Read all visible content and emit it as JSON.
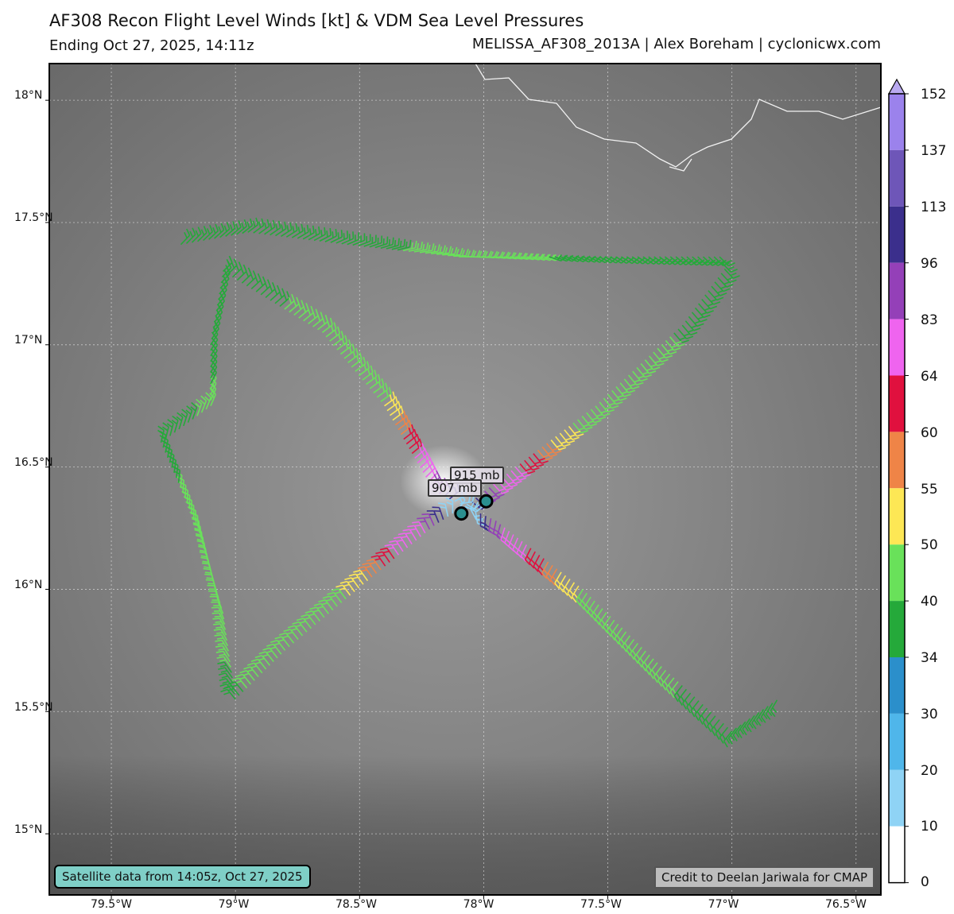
{
  "header": {
    "title": "AF308 Recon Flight Level Winds [kt] & VDM Sea Level Pressures",
    "subtitle_left": "Ending Oct 27, 2025, 14:11z",
    "subtitle_right": "MELISSA_AF308_2013A | Alex Boreham | cyclonicwx.com"
  },
  "map": {
    "lat_ticks": [
      "18°N",
      "17.5°N",
      "17°N",
      "16.5°N",
      "16°N",
      "15.5°N",
      "15°N"
    ],
    "lon_ticks": [
      "79.5°W",
      "79°W",
      "78.5°W",
      "78°W",
      "77.5°W",
      "77°W",
      "76.5°W"
    ],
    "pressure_labels": [
      "915 mb",
      "907 mb"
    ],
    "satellite_note": "Satellite data from 14:05z, Oct 27, 2025",
    "credit": "Credit to Deelan Jariwala for CMAP"
  },
  "colorbar": {
    "ticks": [
      "152",
      "137",
      "113",
      "96",
      "83",
      "64",
      "60",
      "55",
      "50",
      "40",
      "34",
      "30",
      "20",
      "10",
      "0"
    ],
    "colors": [
      "#9b82ec",
      "#6e56b8",
      "#3b2f8c",
      "#9440b8",
      "#ef64ef",
      "#e0103e",
      "#ef8447",
      "#fde755",
      "#69e15a",
      "#25a93a",
      "#2b8fcb",
      "#4fb6ea",
      "#8fd3f5",
      "#ffffff"
    ]
  },
  "chart_data": {
    "type": "map",
    "title": "AF308 Recon Flight Level Winds [kt] & VDM Sea Level Pressures",
    "x_axis": {
      "label": "",
      "range_degW": [
        79.75,
        76.4
      ]
    },
    "y_axis": {
      "label": "",
      "range_degN": [
        14.75,
        18.15
      ]
    },
    "vdm_pressures": [
      {
        "label": "915 mb",
        "lat": 16.36,
        "lon": -77.99
      },
      {
        "label": "907 mb",
        "lat": 16.31,
        "lon": -78.09
      }
    ],
    "flight_track": [
      [
        17.41,
        -79.22
      ],
      [
        17.46,
        -78.95
      ],
      [
        17.41,
        -78.55
      ],
      [
        17.36,
        -78.1
      ],
      [
        17.36,
        -77.6
      ],
      [
        17.36,
        -77.05
      ],
      [
        17.31,
        -77.03
      ],
      [
        17.08,
        -77.2
      ],
      [
        16.75,
        -77.55
      ],
      [
        16.36,
        -78.05
      ],
      [
        16.26,
        -78.2
      ],
      [
        16.05,
        -78.45
      ],
      [
        15.75,
        -78.8
      ],
      [
        15.55,
        -79.0
      ],
      [
        15.9,
        -79.05
      ],
      [
        16.25,
        -79.15
      ],
      [
        16.6,
        -79.3
      ],
      [
        16.75,
        -79.1
      ],
      [
        17.0,
        -79.1
      ],
      [
        17.3,
        -79.05
      ],
      [
        17.05,
        -78.65
      ],
      [
        16.75,
        -78.4
      ],
      [
        16.4,
        -78.2
      ],
      [
        16.28,
        -77.95
      ],
      [
        16.0,
        -77.6
      ],
      [
        15.7,
        -77.3
      ],
      [
        15.42,
        -77.0
      ],
      [
        15.56,
        -76.8
      ]
    ]
  }
}
